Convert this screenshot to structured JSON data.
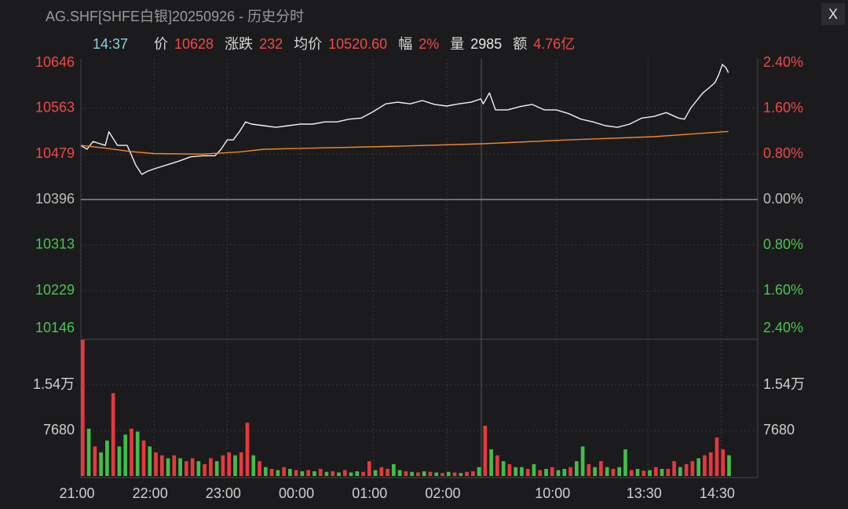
{
  "header": {
    "title": "AG.SHF[SHFE白银]20250926 - 历史分时",
    "close": "X"
  },
  "info": {
    "time": "14:37",
    "items": [
      {
        "label": "价",
        "value": "10628",
        "color": "#f04848"
      },
      {
        "label": "涨跌",
        "value": "232",
        "color": "#f04848"
      },
      {
        "label": "均价",
        "value": "10520.60",
        "color": "#f04848"
      },
      {
        "label": "幅",
        "value": "2%",
        "color": "#f04848"
      },
      {
        "label": "量",
        "value": "2985",
        "color": "#e8e8e8"
      },
      {
        "label": "额",
        "value": "4.76亿",
        "color": "#f04848"
      }
    ]
  },
  "chart_data": {
    "type": "line",
    "xlim": [
      0,
      555
    ],
    "xticks": [
      {
        "value": 0,
        "label": "21:00"
      },
      {
        "value": 60,
        "label": "22:00"
      },
      {
        "value": 120,
        "label": "23:00"
      },
      {
        "value": 180,
        "label": "00:00"
      },
      {
        "value": 240,
        "label": "01:00"
      },
      {
        "value": 300,
        "label": "02:00"
      },
      {
        "value": 390,
        "label": "10:00"
      },
      {
        "value": 465,
        "label": "13:30"
      },
      {
        "value": 525,
        "label": "14:30"
      }
    ],
    "ylim": [
      10146,
      10646
    ],
    "yticks": [
      10646,
      10563,
      10479,
      10396,
      10313,
      10229,
      10146
    ],
    "y2lim": [
      -2.4,
      2.4
    ],
    "y2ticks": [
      {
        "value": 2.4,
        "label": "2.40%"
      },
      {
        "value": 1.6,
        "label": "1.60%"
      },
      {
        "value": 0.8,
        "label": "0.80%"
      },
      {
        "value": 0,
        "label": "0.00%"
      },
      {
        "value": -0.8,
        "label": "0.80%"
      },
      {
        "value": -1.6,
        "label": "1.60%"
      },
      {
        "value": -2.4,
        "label": "2.40%"
      }
    ],
    "grid": true,
    "series": [
      {
        "name": "价",
        "color": "#f2f2f2",
        "x": [
          0,
          5,
          10,
          20,
          23,
          30,
          38,
          45,
          50,
          55,
          60,
          70,
          80,
          90,
          100,
          110,
          115,
          120,
          125,
          130,
          135,
          140,
          150,
          160,
          170,
          180,
          190,
          200,
          210,
          220,
          230,
          240,
          250,
          260,
          270,
          280,
          290,
          300,
          310,
          320,
          328,
          330,
          335,
          340,
          350,
          360,
          370,
          380,
          390,
          400,
          410,
          420,
          430,
          440,
          450,
          460,
          470,
          480,
          490,
          495,
          500,
          505,
          510,
          515,
          520,
          523,
          526,
          529,
          531
        ],
        "values": [
          10495,
          10488,
          10502,
          10495,
          10520,
          10495,
          10495,
          10459,
          10442,
          10448,
          10452,
          10459,
          10466,
          10474,
          10476,
          10476,
          10488,
          10505,
          10505,
          10520,
          10538,
          10534,
          10531,
          10528,
          10531,
          10534,
          10534,
          10538,
          10538,
          10543,
          10545,
          10557,
          10571,
          10574,
          10571,
          10577,
          10570,
          10567,
          10571,
          10574,
          10580,
          10571,
          10591,
          10560,
          10560,
          10566,
          10570,
          10560,
          10560,
          10553,
          10543,
          10538,
          10531,
          10528,
          10534,
          10545,
          10548,
          10555,
          10545,
          10543,
          10563,
          10577,
          10591,
          10600,
          10610,
          10624,
          10643,
          10637,
          10628
        ]
      },
      {
        "name": "均价",
        "color": "#f0882a",
        "x": [
          0,
          20,
          40,
          60,
          100,
          130,
          150,
          250,
          330,
          400,
          470,
          531
        ],
        "values": [
          10495,
          10490,
          10484,
          10480,
          10479,
          10483,
          10488,
          10493,
          10498,
          10505,
          10511,
          10520.6
        ]
      }
    ],
    "volume": {
      "ylim": [
        0,
        23100
      ],
      "yticks": [
        {
          "value": 15400,
          "label": "1.54万"
        },
        7680
      ],
      "x": [
        0,
        5,
        10,
        15,
        20,
        25,
        30,
        35,
        40,
        45,
        50,
        55,
        60,
        65,
        70,
        75,
        80,
        85,
        90,
        95,
        100,
        105,
        110,
        115,
        120,
        125,
        130,
        135,
        140,
        145,
        150,
        155,
        160,
        165,
        170,
        175,
        180,
        185,
        190,
        195,
        200,
        205,
        210,
        215,
        220,
        225,
        230,
        235,
        240,
        245,
        250,
        255,
        260,
        265,
        270,
        275,
        280,
        285,
        290,
        295,
        300,
        305,
        310,
        315,
        320,
        325,
        330,
        335,
        340,
        345,
        350,
        355,
        360,
        365,
        370,
        375,
        380,
        385,
        390,
        395,
        400,
        405,
        410,
        415,
        420,
        425,
        430,
        435,
        440,
        445,
        450,
        455,
        460,
        465,
        470,
        475,
        480,
        485,
        490,
        495,
        500,
        505,
        510,
        515,
        520,
        525,
        530
      ],
      "values": [
        23000,
        8000,
        5000,
        4000,
        6000,
        14000,
        5000,
        7000,
        8000,
        7500,
        6000,
        5000,
        4000,
        3500,
        3000,
        3500,
        3000,
        2500,
        3000,
        2500,
        2000,
        3000,
        2500,
        3500,
        4000,
        3500,
        4000,
        9000,
        3500,
        2500,
        1500,
        1200,
        1000,
        1500,
        1200,
        1000,
        800,
        1000,
        800,
        1200,
        700,
        800,
        600,
        1000,
        600,
        800,
        700,
        2500,
        1000,
        1500,
        1200,
        2000,
        1000,
        800,
        700,
        600,
        800,
        700,
        600,
        500,
        700,
        600,
        500,
        700,
        800,
        1500,
        8500,
        4500,
        3500,
        2500,
        2000,
        1500,
        1500,
        1200,
        2000,
        1000,
        1200,
        1500,
        1000,
        1200,
        1500,
        2500,
        5000,
        2000,
        1500,
        2500,
        1500,
        1200,
        1500,
        4500,
        1000,
        1200,
        900,
        1000,
        1500,
        1200,
        1200,
        2500,
        1500,
        2000,
        2500,
        3000,
        3500,
        4000,
        6500,
        4500,
        3500
      ],
      "colors": [
        "#e8383d",
        "#3fbf4a",
        "#e8383d",
        "#3fbf4a",
        "#3fbf4a",
        "#e8383d",
        "#3fbf4a",
        "#3fbf4a",
        "#e8383d",
        "#3fbf4a",
        "#e8383d",
        "#3fbf4a",
        "#e8383d",
        "#e8383d",
        "#3fbf4a",
        "#e8383d",
        "#3fbf4a",
        "#e8383d",
        "#e8383d",
        "#3fbf4a",
        "#e8383d",
        "#e8383d",
        "#3fbf4a",
        "#e8383d",
        "#e8383d",
        "#3fbf4a",
        "#e8383d",
        "#e8383d",
        "#3fbf4a",
        "#e8383d",
        "#3fbf4a",
        "#e8383d",
        "#3fbf4a",
        "#e8383d",
        "#3fbf4a",
        "#e8383d",
        "#3fbf4a",
        "#e8383d",
        "#3fbf4a",
        "#e8383d",
        "#3fbf4a",
        "#e8383d",
        "#3fbf4a",
        "#e8383d",
        "#3fbf4a",
        "#3fbf4a",
        "#e8383d",
        "#e8383d",
        "#3fbf4a",
        "#e8383d",
        "#e8383d",
        "#3fbf4a",
        "#3fbf4a",
        "#e8383d",
        "#3fbf4a",
        "#e8383d",
        "#3fbf4a",
        "#e8383d",
        "#3fbf4a",
        "#e8383d",
        "#3fbf4a",
        "#e8383d",
        "#3fbf4a",
        "#e8383d",
        "#e8383d",
        "#3fbf4a",
        "#e8383d",
        "#3fbf4a",
        "#e8383d",
        "#3fbf4a",
        "#e8383d",
        "#3fbf4a",
        "#3fbf4a",
        "#e8383d",
        "#3fbf4a",
        "#e8383d",
        "#3fbf4a",
        "#e8383d",
        "#3fbf4a",
        "#3fbf4a",
        "#e8383d",
        "#3fbf4a",
        "#3fbf4a",
        "#e8383d",
        "#3fbf4a",
        "#e8383d",
        "#3fbf4a",
        "#e8383d",
        "#3fbf4a",
        "#3fbf4a",
        "#e8383d",
        "#3fbf4a",
        "#e8383d",
        "#3fbf4a",
        "#e8383d",
        "#3fbf4a",
        "#e8383d",
        "#e8383d",
        "#3fbf4a",
        "#e8383d",
        "#e8383d",
        "#3fbf4a",
        "#e8383d",
        "#e8383d",
        "#e8383d",
        "#e8383d",
        "#3fbf4a"
      ]
    }
  }
}
